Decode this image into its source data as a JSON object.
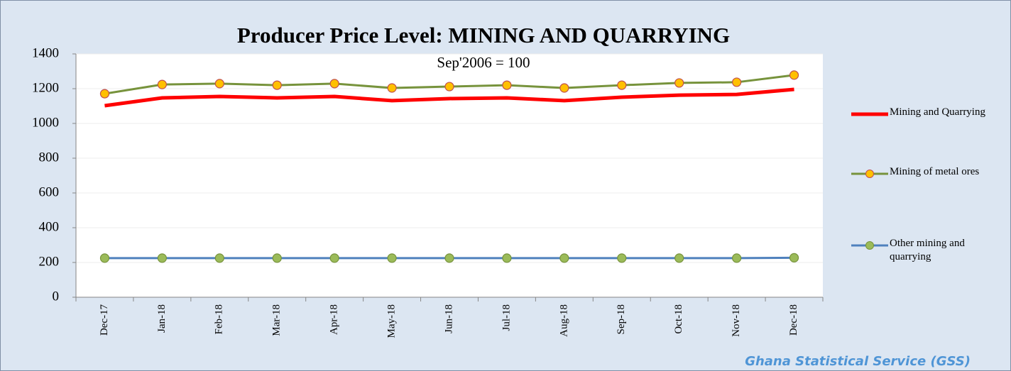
{
  "chart_data": {
    "type": "line",
    "title": "Producer Price Level:  MINING AND QUARRYING",
    "subtitle": "Sep'2006 = 100",
    "source": "Ghana Statistical Service (GSS)",
    "categories": [
      "Dec-17",
      "Jan-18",
      "Feb-18",
      "Mar-18",
      "Apr-18",
      "May-18",
      "Jun-18",
      "Jul-18",
      "Aug-18",
      "Sep-18",
      "Oct-18",
      "Nov-18",
      "Dec-18"
    ],
    "series": [
      {
        "name": "Mining and Quarrying",
        "color": "#ff0000",
        "values": [
          1102,
          1147,
          1155,
          1147,
          1155,
          1131,
          1143,
          1147,
          1131,
          1151,
          1163,
          1167,
          1196
        ]
      },
      {
        "name": "Mining of metal ores",
        "color": "#77933c",
        "marker_color": "#ffc000",
        "values": [
          1171,
          1224,
          1229,
          1220,
          1229,
          1204,
          1212,
          1220,
          1204,
          1220,
          1233,
          1237,
          1278
        ]
      },
      {
        "name": "Other mining and quarrying",
        "color": "#4f81bd",
        "marker_color": "#9bbb59",
        "values": [
          225,
          225,
          225,
          225,
          225,
          225,
          225,
          225,
          225,
          225,
          225,
          225,
          227
        ]
      }
    ],
    "ylim": [
      0,
      1400
    ],
    "yticks": [
      0,
      200,
      400,
      600,
      800,
      1000,
      1200,
      1400
    ],
    "grid": true,
    "legend": "right"
  }
}
